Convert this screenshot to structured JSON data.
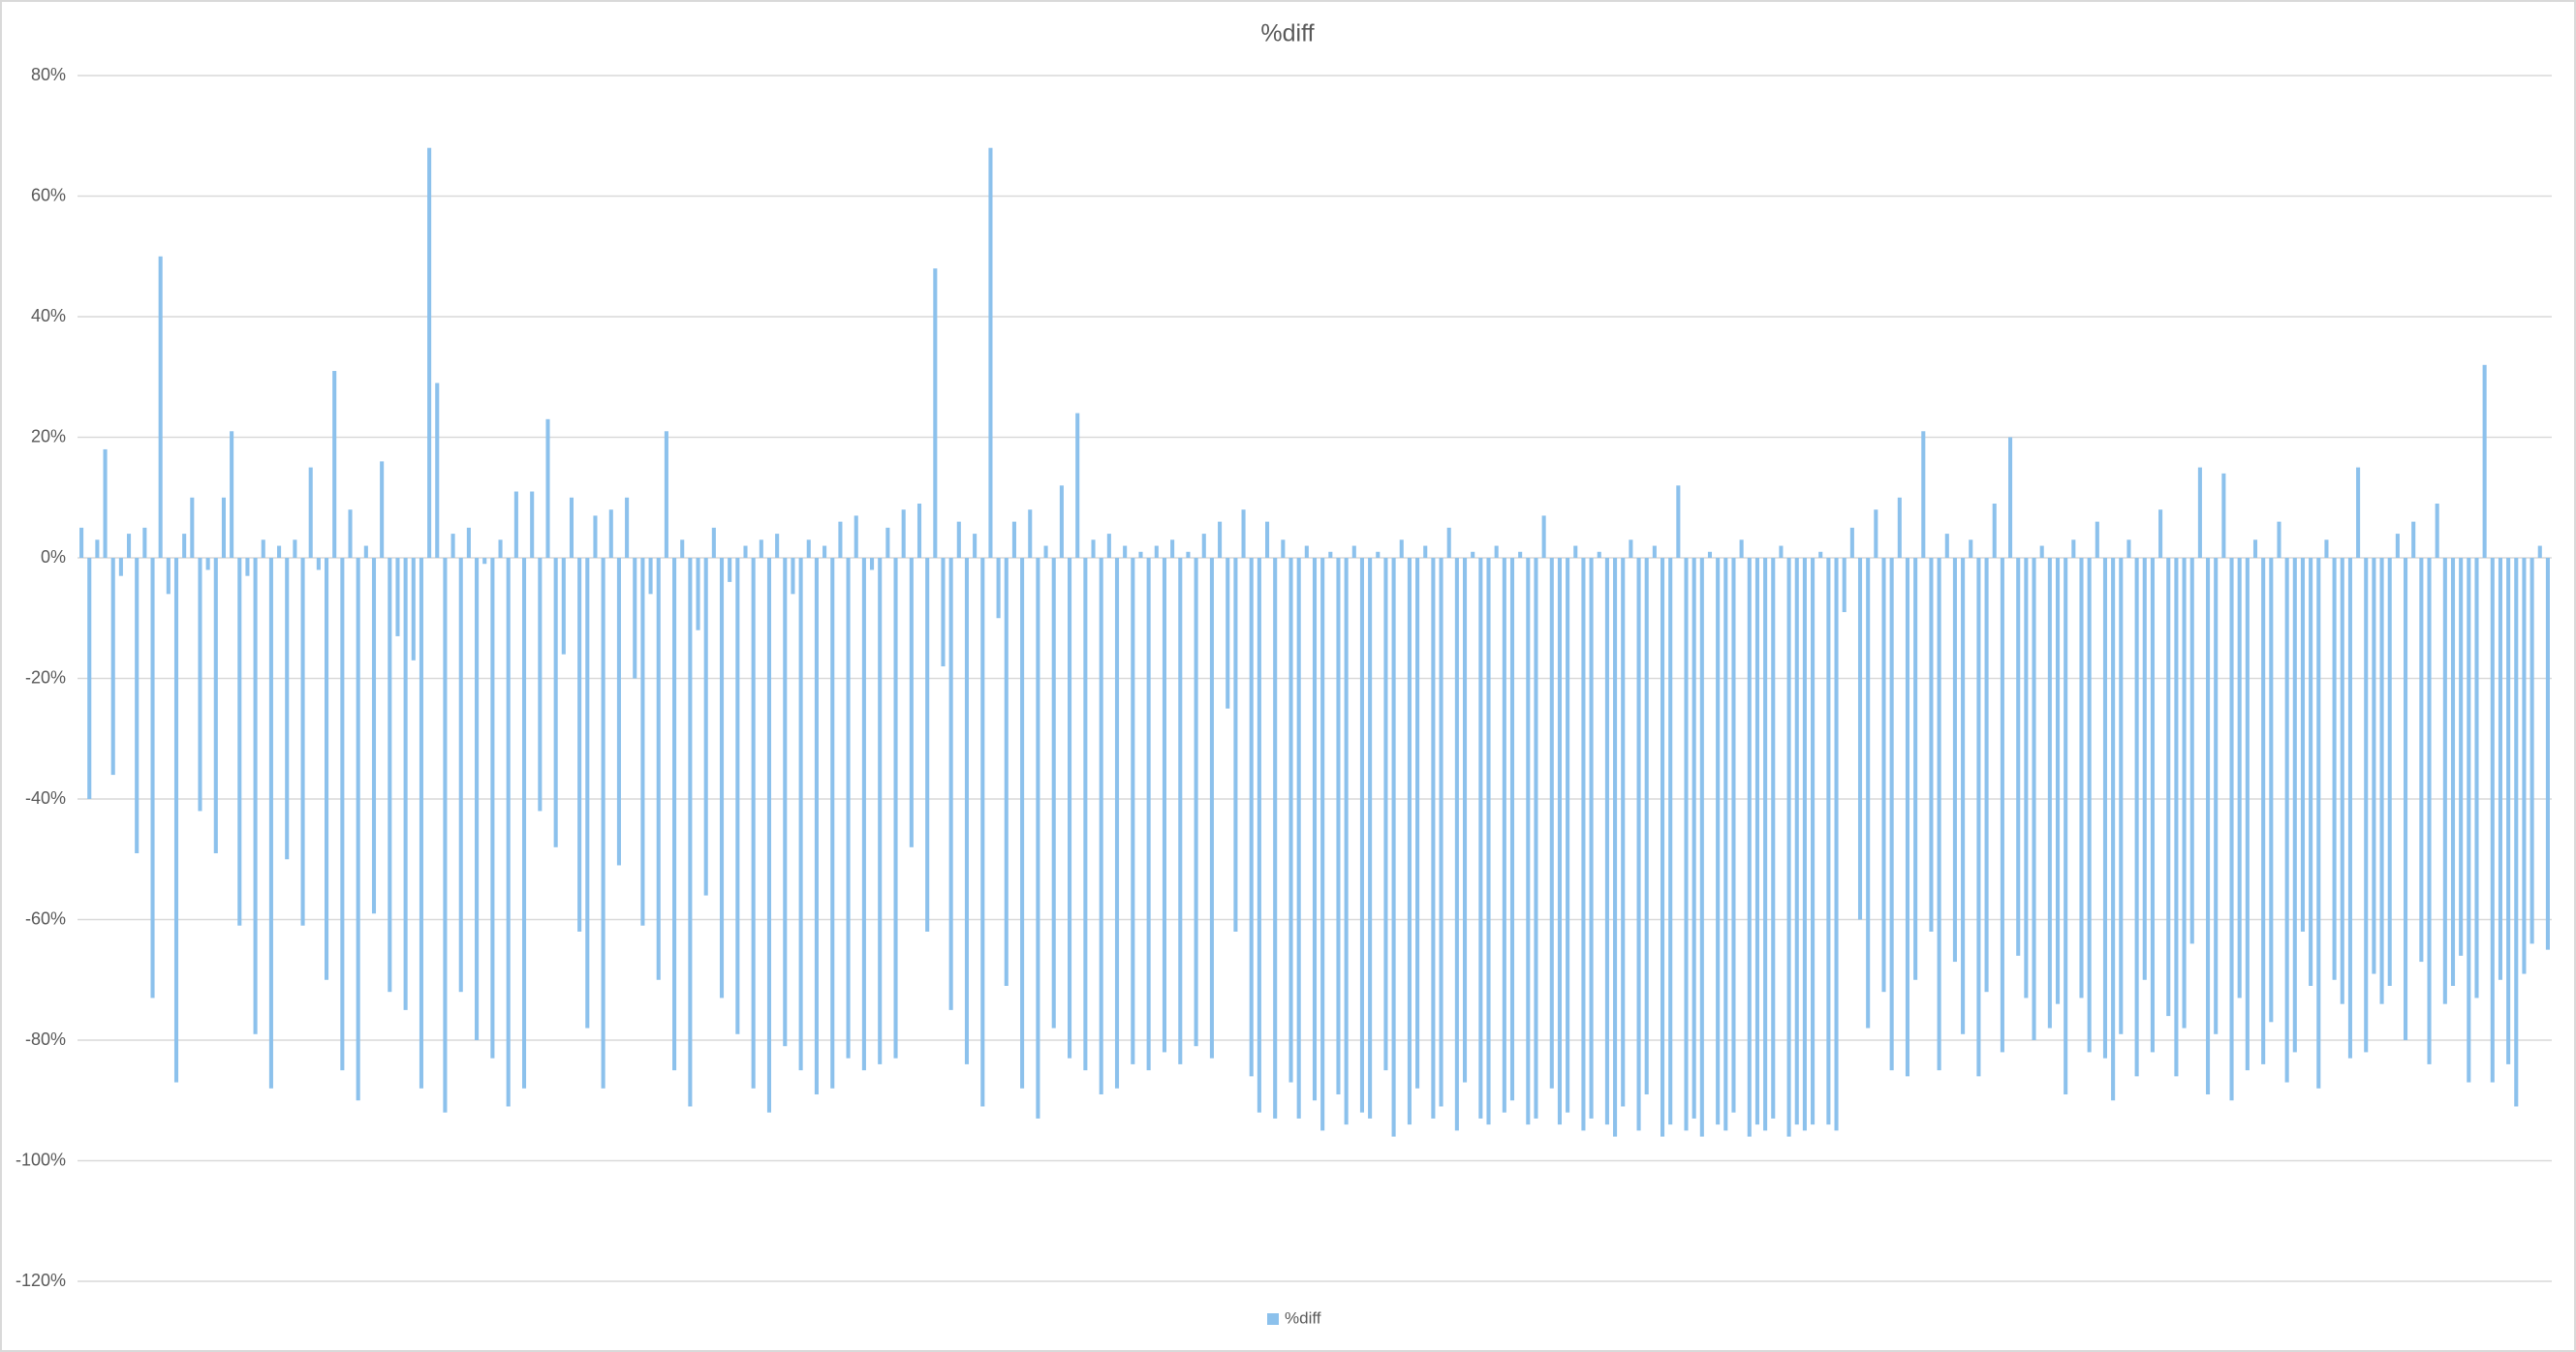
{
  "chart_data": {
    "type": "bar",
    "title": "%diff",
    "series": [
      {
        "name": "%diff",
        "color": "#8cc1ec",
        "values": [
          5,
          -40,
          3,
          18,
          -36,
          -3,
          4,
          -49,
          5,
          -73,
          50,
          -6,
          -87,
          4,
          10,
          -42,
          -2,
          -49,
          10,
          21,
          -61,
          -3,
          -79,
          3,
          -88,
          2,
          -50,
          3,
          -61,
          15,
          -2,
          -70,
          31,
          -85,
          8,
          -90,
          2,
          -59,
          16,
          -72,
          -13,
          -75,
          -17,
          -88,
          68,
          29,
          -92,
          4,
          -72,
          5,
          -80,
          -1,
          -83,
          3,
          -91,
          11,
          -88,
          11,
          -42,
          23,
          -48,
          -16,
          10,
          -62,
          -78,
          7,
          -88,
          8,
          -51,
          10,
          -20,
          -61,
          -6,
          -70,
          21,
          -85,
          3,
          -91,
          -12,
          -56,
          5,
          -73,
          -4,
          -79,
          2,
          -88,
          3,
          -92,
          4,
          -81,
          -6,
          -85,
          3,
          -89,
          2,
          -88,
          6,
          -83,
          7,
          -85,
          -2,
          -84,
          5,
          -83,
          8,
          -48,
          9,
          -62,
          48,
          -18,
          -75,
          6,
          -84,
          4,
          -91,
          68,
          -10,
          -71,
          6,
          -88,
          8,
          -93,
          2,
          -78,
          12,
          -83,
          24,
          -85,
          3,
          -89,
          4,
          -88,
          2,
          -84,
          1,
          -85,
          2,
          -82,
          3,
          -84,
          1,
          -81,
          4,
          -83,
          6,
          -25,
          -62,
          8,
          -86,
          -92,
          6,
          -93,
          3,
          -87,
          -93,
          2,
          -90,
          -95,
          1,
          -89,
          -94,
          2,
          -92,
          -93,
          1,
          -85,
          -96,
          3,
          -94,
          -88,
          2,
          -93,
          -91,
          5,
          -95,
          -87,
          1,
          -93,
          -94,
          2,
          -92,
          -90,
          1,
          -94,
          -93,
          7,
          -88,
          -94,
          -92,
          2,
          -95,
          -93,
          1,
          -94,
          -96,
          -91,
          3,
          -95,
          -89,
          2,
          -96,
          -94,
          12,
          -95,
          -93,
          -96,
          1,
          -94,
          -95,
          -92,
          3,
          -96,
          -94,
          -95,
          -93,
          2,
          -96,
          -94,
          -95,
          -94,
          1,
          -94,
          -95,
          -9,
          5,
          -60,
          -78,
          8,
          -72,
          -85,
          10,
          -86,
          -70,
          21,
          -62,
          -85,
          4,
          -67,
          -79,
          3,
          -86,
          -72,
          9,
          -82,
          20,
          -66,
          -73,
          -80,
          2,
          -78,
          -74,
          -89,
          3,
          -73,
          -82,
          6,
          -83,
          -90,
          -79,
          3,
          -86,
          -70,
          -82,
          8,
          -76,
          -86,
          -78,
          -64,
          15,
          -89,
          -79,
          14,
          -90,
          -73,
          -85,
          3,
          -84,
          -77,
          6,
          -87,
          -82,
          -62,
          -71,
          -88,
          3,
          -70,
          -74,
          -83,
          15,
          -82,
          -69,
          -74,
          -71,
          4,
          -80,
          6,
          -67,
          -84,
          9,
          -74,
          -71,
          -66,
          -87,
          -73,
          32,
          -87,
          -70,
          -84,
          -91,
          -69,
          -64,
          2,
          -65
        ]
      }
    ],
    "ylim": [
      -120,
      80
    ],
    "yticks": [
      {
        "value": -120,
        "label": "-120%"
      },
      {
        "value": -100,
        "label": "-100%"
      },
      {
        "value": -80,
        "label": "-80%"
      },
      {
        "value": -60,
        "label": "-60%"
      },
      {
        "value": -40,
        "label": "-40%"
      },
      {
        "value": -20,
        "label": "-20%"
      },
      {
        "value": 0,
        "label": "0%"
      },
      {
        "value": 20,
        "label": "20%"
      },
      {
        "value": 40,
        "label": "40%"
      },
      {
        "value": 60,
        "label": "60%"
      },
      {
        "value": 80,
        "label": "80%"
      }
    ],
    "grid": true,
    "legend": "bottom"
  }
}
